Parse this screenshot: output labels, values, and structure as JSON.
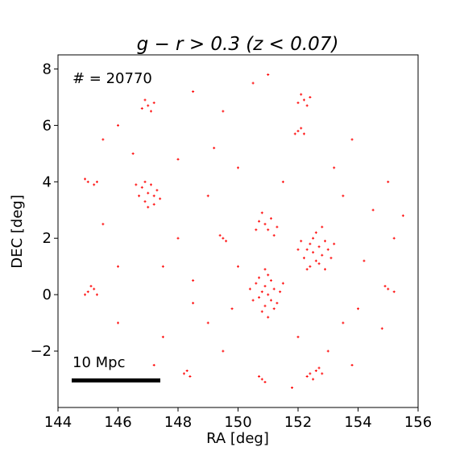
{
  "chart_data": {
    "type": "scatter",
    "title": "g − r > 0.3  (z < 0.07)",
    "x_label": "RA [deg]",
    "y_label": "DEC [deg]",
    "annotations": [
      "# = 20770",
      "10 Mpc"
    ],
    "xlim": [
      144,
      156
    ],
    "xticks": [
      144,
      146,
      148,
      150,
      152,
      154,
      156
    ],
    "ylim": [
      -4,
      8.5
    ],
    "yticks": [
      {
        "value": -2,
        "label": "−2"
      },
      0,
      2,
      4,
      6,
      8
    ],
    "series": [
      {
        "color": "#ff0000",
        "x": [
          150.8,
          151.1,
          150.9,
          151.2,
          150.7,
          151.0,
          151.3,
          150.6,
          151.1,
          150.9,
          151.4,
          150.5,
          151.0,
          150.8,
          151.2,
          150.7,
          151.5,
          150.4,
          151.0,
          150.9,
          152.5,
          152.7,
          152.4,
          152.8,
          152.6,
          152.3,
          152.9,
          152.5,
          152.7,
          152.2,
          153.0,
          152.4,
          152.6,
          152.1,
          153.1,
          152.8,
          152.3,
          152.9,
          152.0,
          153.2,
          147.0,
          146.8,
          147.2,
          146.9,
          147.1,
          146.7,
          147.3,
          147.0,
          146.6,
          147.2,
          146.9,
          147.4,
          150.9,
          151.1,
          151.0,
          150.7,
          151.3,
          150.8,
          151.2,
          150.6,
          152.4,
          152.6,
          152.3,
          152.7,
          152.5,
          152.8,
          147.0,
          146.8,
          147.2,
          146.9,
          147.1,
          152.2,
          152.4,
          152.0,
          152.3,
          152.1,
          152.0,
          152.1,
          151.9,
          152.2,
          145.0,
          145.2,
          144.9,
          145.3,
          145.1,
          155.0,
          155.2,
          154.9,
          145.0,
          145.2,
          144.9,
          145.3,
          148.2,
          148.4,
          148.3,
          150.8,
          150.9,
          150.7,
          149.5,
          149.6,
          149.4,
          146.0,
          148.5,
          149.0,
          153.5,
          154.5,
          153.8,
          149.5,
          148.0,
          150.0,
          146.0,
          145.5,
          147.5,
          149.5,
          153.0,
          154.0,
          155.2,
          155.0,
          150.5,
          151.0,
          148.5,
          146.5,
          148.0,
          149.0,
          150.0,
          149.8,
          153.5,
          154.2,
          153.2,
          151.5,
          148.5,
          146.0,
          147.5,
          152.0,
          153.8,
          154.8,
          149.2,
          147.2,
          151.8,
          145.5,
          155.5
        ],
        "y": [
          0.1,
          -0.2,
          0.3,
          0.2,
          -0.1,
          0.0,
          -0.3,
          0.4,
          0.5,
          -0.4,
          0.1,
          -0.2,
          0.7,
          -0.6,
          -0.5,
          0.6,
          0.4,
          0.2,
          -0.8,
          0.9,
          1.5,
          1.7,
          1.8,
          1.4,
          1.2,
          1.6,
          1.9,
          2.0,
          1.1,
          1.3,
          1.6,
          1.0,
          2.2,
          1.9,
          1.3,
          2.4,
          0.9,
          0.9,
          1.6,
          1.8,
          3.6,
          3.8,
          3.5,
          3.3,
          3.9,
          3.5,
          3.7,
          3.1,
          3.9,
          3.2,
          4.0,
          3.4,
          2.5,
          2.7,
          2.3,
          2.6,
          2.4,
          2.9,
          2.1,
          2.3,
          -2.8,
          -2.7,
          -2.9,
          -2.6,
          -3.0,
          -2.8,
          6.7,
          6.6,
          6.8,
          6.9,
          6.5,
          6.9,
          7.0,
          6.8,
          6.7,
          7.1,
          5.8,
          5.9,
          5.7,
          5.7,
          0.1,
          0.2,
          0.0,
          0.0,
          0.3,
          0.2,
          0.1,
          0.3,
          4.0,
          3.9,
          4.1,
          4.0,
          -2.8,
          -2.9,
          -2.7,
          -3.0,
          -3.1,
          -2.9,
          2.0,
          1.9,
          2.1,
          1.0,
          0.5,
          -1.0,
          -1.0,
          3.0,
          5.5,
          6.5,
          4.8,
          4.5,
          6.0,
          2.5,
          -1.5,
          -2.0,
          -2.0,
          -0.5,
          2.0,
          4.0,
          7.5,
          7.8,
          7.2,
          5.0,
          2.0,
          3.5,
          1.0,
          -0.5,
          3.5,
          1.2,
          4.5,
          4.0,
          -0.3,
          -1.0,
          1.0,
          -1.5,
          -2.5,
          -1.2,
          5.2,
          -2.5,
          -3.3,
          5.5,
          2.8
        ]
      }
    ]
  }
}
